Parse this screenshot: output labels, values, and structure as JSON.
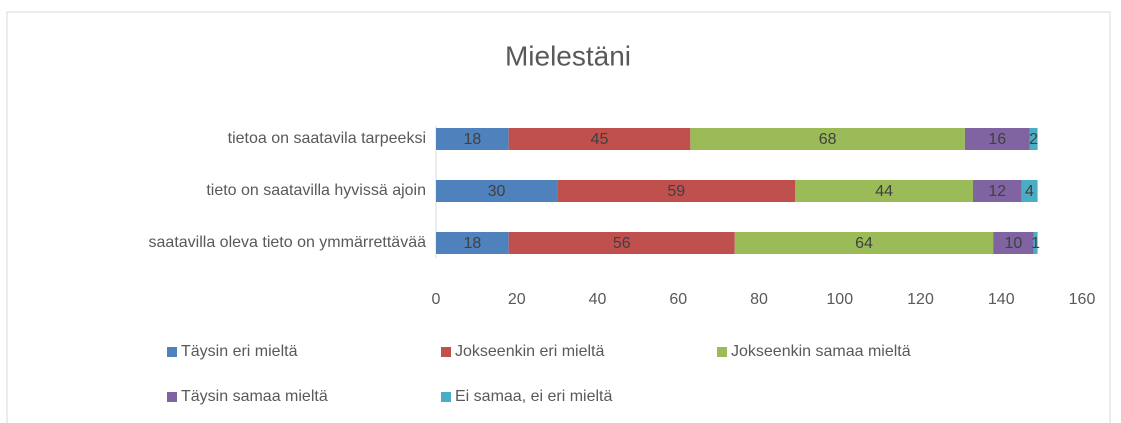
{
  "chart_data": {
    "type": "stacked_bar_horizontal",
    "title": "Mielestäni",
    "categories": [
      "tietoa on saatavila tarpeeksi",
      "tieto on saatavilla hyvissä ajoin",
      "saatavilla oleva tieto on ymmärrettävää"
    ],
    "series": [
      {
        "name": "Täysin eri mieltä",
        "color": "#4f81bd",
        "values": [
          18,
          30,
          18
        ]
      },
      {
        "name": "Jokseenkin eri mieltä",
        "color": "#c0504d",
        "values": [
          45,
          59,
          56
        ]
      },
      {
        "name": "Jokseenkin samaa mieltä",
        "color": "#9bbb59",
        "values": [
          68,
          44,
          64
        ]
      },
      {
        "name": "Täysin samaa mieltä",
        "color": "#8064a2",
        "values": [
          16,
          12,
          10
        ]
      },
      {
        "name": "Ei samaa, ei eri mieltä",
        "color": "#4bacc6",
        "values": [
          2,
          4,
          1
        ]
      }
    ],
    "xlim": [
      0,
      160
    ],
    "xticks": [
      0,
      20,
      40,
      60,
      80,
      100,
      120,
      140,
      160
    ],
    "legend": "bottom"
  }
}
